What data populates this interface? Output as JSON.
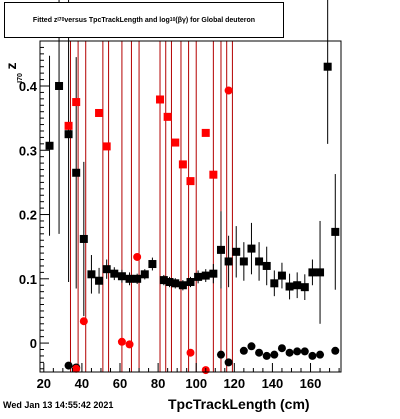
{
  "title": {
    "prefix": "Fitted z",
    "sub1": "I70",
    "mid": " versus TpcTrackLength and log",
    "sub2": "10",
    "suffix": "(βγ) for Global deuteron"
  },
  "footer": {
    "date": "Wed Jan 13 14:55:42 2021"
  },
  "chart_data": {
    "type": "scatter",
    "title": "Fitted z_I70 versus TpcTrackLength and log10(βγ) for Global deuteron",
    "xlabel": "TpcTrackLength (cm)",
    "ylabel": "z",
    "ylabel_sub": "I70",
    "xlim": [
      18,
      176
    ],
    "ylim": [
      -0.045,
      0.47
    ],
    "x_ticks": [
      20,
      40,
      60,
      80,
      100,
      120,
      140,
      160
    ],
    "y_ticks": [
      0,
      0.1,
      0.2,
      0.3,
      0.4
    ],
    "y_tick_labels": [
      "0",
      "0.1",
      "0.2",
      "0.3",
      "0.4"
    ],
    "grid": false,
    "vertical_lines_x": [
      34,
      38,
      42,
      51,
      54,
      61,
      66,
      70,
      81,
      84,
      87,
      92,
      96,
      100,
      109,
      113,
      116,
      119
    ],
    "series": [
      {
        "marker": "square",
        "color": "#000000",
        "points": [
          [
            23,
            0.307,
            0.14
          ],
          [
            28,
            0.4,
            0.23
          ],
          [
            33,
            0.325,
            0.23
          ],
          [
            37,
            0.265,
            0.18
          ],
          [
            41,
            0.162,
            0.12
          ],
          [
            45,
            0.107,
            0.03
          ],
          [
            49,
            0.097,
            0.02
          ],
          [
            53,
            0.115,
            0.015
          ],
          [
            57,
            0.108,
            0.01
          ],
          [
            61,
            0.104,
            0.01
          ],
          [
            65,
            0.1,
            0.01
          ],
          [
            69,
            0.1,
            0.008
          ],
          [
            73,
            0.107,
            0.008
          ],
          [
            77,
            0.123,
            0.01
          ],
          [
            83,
            0.098,
            0.008
          ],
          [
            86,
            0.095,
            0.008
          ],
          [
            89,
            0.093,
            0.008
          ],
          [
            93,
            0.09,
            0.008
          ],
          [
            97,
            0.095,
            0.008
          ],
          [
            101,
            0.103,
            0.01
          ],
          [
            105,
            0.105,
            0.01
          ],
          [
            109,
            0.108,
            0.015
          ],
          [
            113,
            0.145,
            0.06
          ],
          [
            117,
            0.127,
            0.04
          ],
          [
            121,
            0.142,
            0.04
          ],
          [
            125,
            0.127,
            0.03
          ],
          [
            129,
            0.147,
            0.04
          ],
          [
            133,
            0.127,
            0.03
          ],
          [
            137,
            0.12,
            0.03
          ],
          [
            141,
            0.093,
            0.02
          ],
          [
            145,
            0.105,
            0.02
          ],
          [
            149,
            0.088,
            0.02
          ],
          [
            153,
            0.09,
            0.02
          ],
          [
            157,
            0.087,
            0.02
          ],
          [
            161,
            0.11,
            0.02
          ],
          [
            165,
            0.11,
            0.08
          ],
          [
            169,
            0.43,
            0.12
          ],
          [
            173,
            0.173,
            0.09
          ]
        ]
      },
      {
        "marker": "circle",
        "color": "#000000",
        "points": [
          [
            33,
            -0.035,
            0.0
          ],
          [
            37,
            -0.038,
            0.0
          ],
          [
            113,
            -0.018,
            0.0
          ],
          [
            117,
            -0.03,
            0.0
          ],
          [
            125,
            -0.012,
            0.0
          ],
          [
            129,
            -0.005,
            0.0
          ],
          [
            133,
            -0.015,
            0.0
          ],
          [
            137,
            -0.02,
            0.0
          ],
          [
            141,
            -0.018,
            0.0
          ],
          [
            145,
            -0.008,
            0.0
          ],
          [
            149,
            -0.015,
            0.0
          ],
          [
            153,
            -0.013,
            0.0
          ],
          [
            157,
            -0.013,
            0.0
          ],
          [
            161,
            -0.02,
            0.0
          ],
          [
            165,
            -0.018,
            0.0
          ],
          [
            173,
            -0.012,
            0.0
          ]
        ]
      },
      {
        "marker": "square",
        "color": "#ff0000",
        "points": [
          [
            33,
            0.338
          ],
          [
            37,
            0.375
          ],
          [
            49,
            0.358
          ],
          [
            53,
            0.306
          ],
          [
            81,
            0.379
          ],
          [
            85,
            0.352
          ],
          [
            89,
            0.312
          ],
          [
            93,
            0.278
          ],
          [
            97,
            0.252
          ],
          [
            105,
            0.327
          ],
          [
            109,
            0.262
          ]
        ]
      },
      {
        "marker": "circle",
        "color": "#ff0000",
        "points": [
          [
            37,
            -0.04
          ],
          [
            41,
            0.034
          ],
          [
            61,
            0.002
          ],
          [
            65,
            -0.002
          ],
          [
            69,
            0.134
          ],
          [
            97,
            -0.015
          ],
          [
            105,
            -0.042
          ],
          [
            117,
            0.393
          ]
        ]
      }
    ]
  }
}
